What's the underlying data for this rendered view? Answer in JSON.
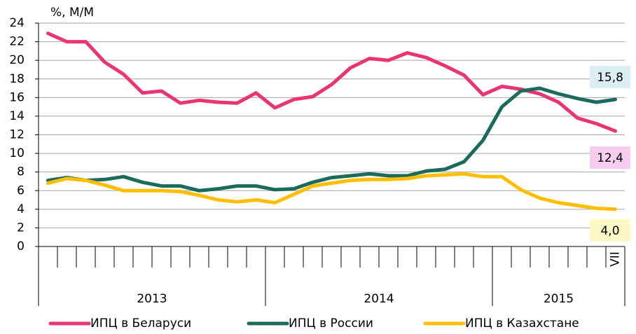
{
  "chart_data": {
    "type": "line",
    "title": "%, М/М",
    "categories": [
      null,
      null,
      null,
      null,
      null,
      null,
      null,
      null,
      null,
      null,
      null,
      null,
      null,
      null,
      null,
      null,
      null,
      null,
      null,
      null,
      null,
      null,
      null,
      null,
      null,
      null,
      null,
      null,
      null,
      null,
      "VII"
    ],
    "year_labels": [
      "2013",
      "2014",
      "2015"
    ],
    "ylim": [
      0,
      24
    ],
    "yticks": [
      0,
      2,
      4,
      6,
      8,
      10,
      12,
      14,
      16,
      18,
      20,
      22,
      24
    ],
    "grid": true,
    "series": [
      {
        "name": "ИПЦ в Беларуси",
        "color": "#ea3474",
        "end_label": "12,4",
        "label_bg": "#f6cdef",
        "values": [
          22.9,
          22.0,
          22.0,
          19.8,
          18.5,
          16.5,
          16.7,
          15.4,
          15.7,
          15.5,
          15.4,
          16.5,
          14.9,
          15.8,
          16.1,
          17.4,
          19.2,
          20.2,
          20.0,
          20.8,
          20.3,
          19.4,
          18.4,
          16.3,
          17.2,
          16.9,
          16.4,
          15.5,
          13.8,
          13.2,
          12.4
        ]
      },
      {
        "name": "ИПЦ в России",
        "color": "#1b6b5d",
        "end_label": "15,8",
        "label_bg": "#dbeef3",
        "values": [
          7.1,
          7.4,
          7.1,
          7.2,
          7.5,
          6.9,
          6.5,
          6.5,
          6.0,
          6.2,
          6.5,
          6.5,
          6.1,
          6.2,
          6.9,
          7.4,
          7.6,
          7.8,
          7.6,
          7.6,
          8.1,
          8.3,
          9.1,
          11.4,
          15.0,
          16.7,
          17.0,
          16.4,
          15.9,
          15.5,
          15.8
        ]
      },
      {
        "name": "ИПЦ в Казахстане",
        "color": "#ffbf00",
        "end_label": "4,0",
        "label_bg": "#fdf8c6",
        "values": [
          6.8,
          7.3,
          7.1,
          6.6,
          6.0,
          6.0,
          6.0,
          5.9,
          5.5,
          5.0,
          4.8,
          5.0,
          4.7,
          5.6,
          6.5,
          6.8,
          7.1,
          7.2,
          7.2,
          7.3,
          7.6,
          7.7,
          7.8,
          7.5,
          7.5,
          6.1,
          5.2,
          4.7,
          4.4,
          4.1,
          4.0
        ]
      }
    ],
    "legend": "bottom"
  }
}
